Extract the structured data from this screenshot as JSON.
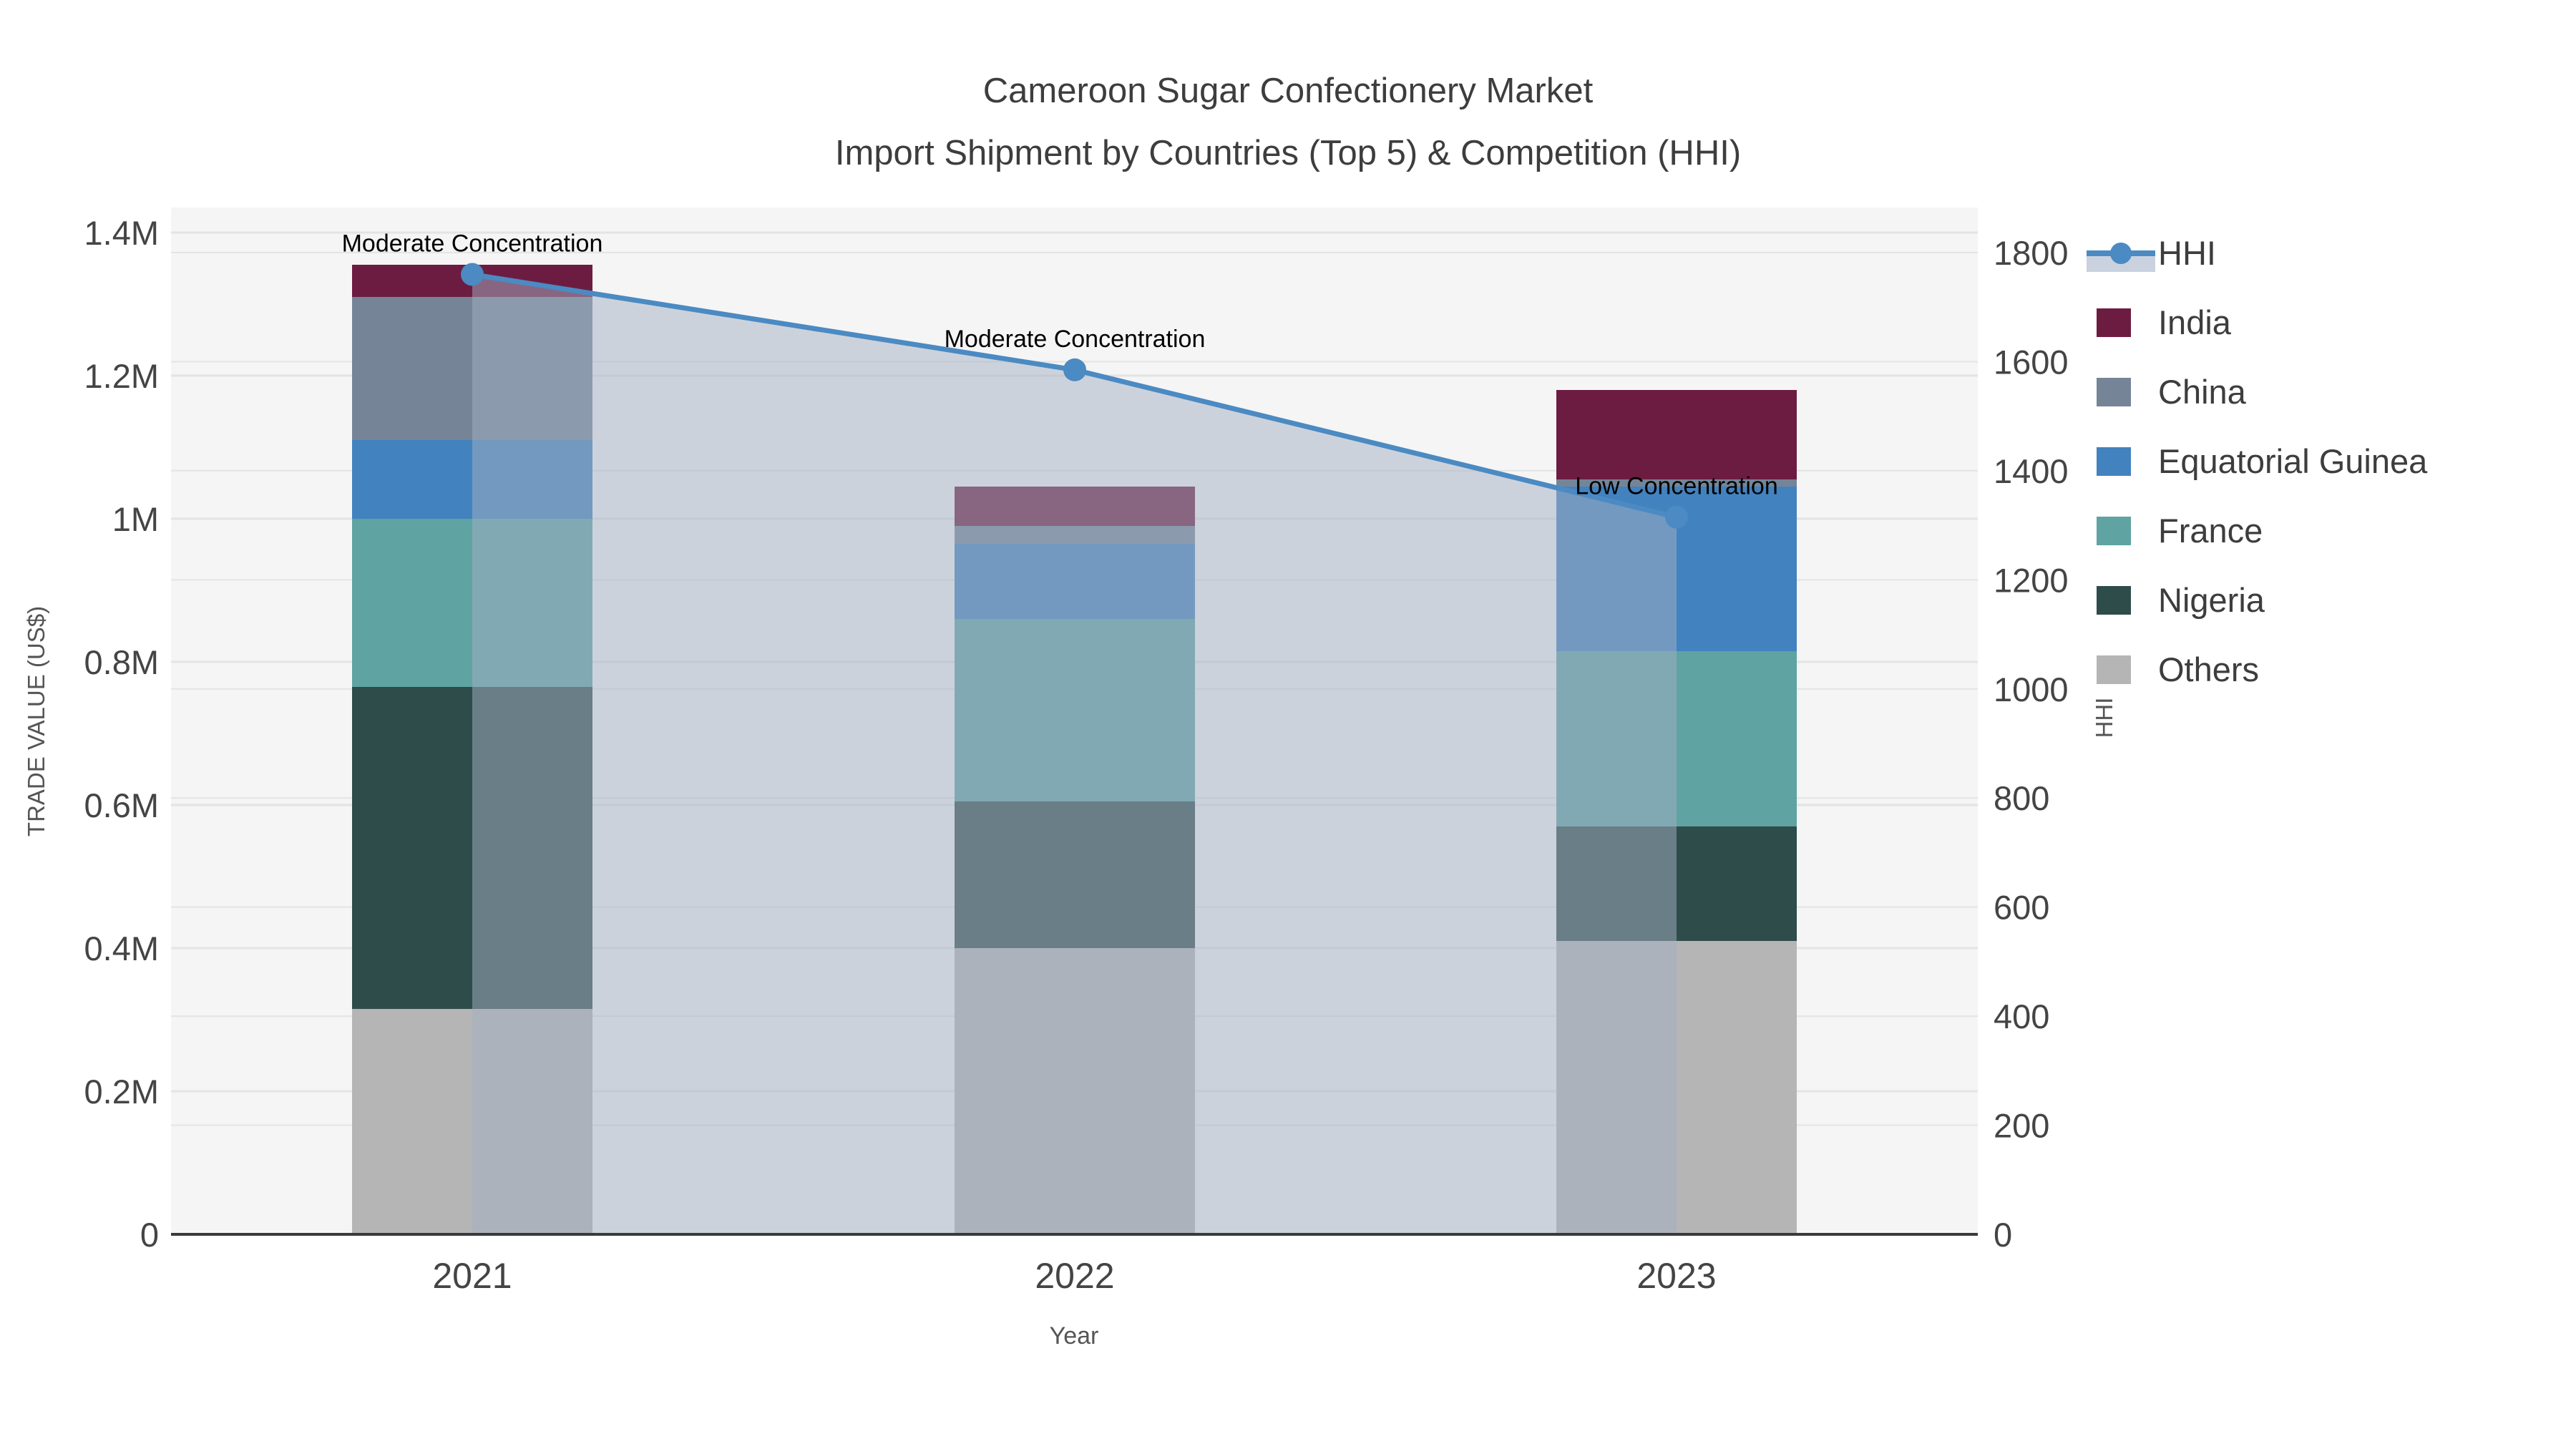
{
  "title": {
    "line1": "Cameroon Sugar Confectionery Market",
    "line2": "Import Shipment by Countries (Top 5) & Competition (HHI)"
  },
  "axes": {
    "x": {
      "label": "Year",
      "categories": [
        "2021",
        "2022",
        "2023"
      ]
    },
    "y_left": {
      "label": "TRADE VALUE (US$)",
      "ticks": [
        "0",
        "0.2M",
        "0.4M",
        "0.6M",
        "0.8M",
        "1M",
        "1.2M",
        "1.4M"
      ],
      "tick_values": [
        0,
        200000,
        400000,
        600000,
        800000,
        1000000,
        1200000,
        1400000
      ],
      "max": 1400000
    },
    "y_right": {
      "label": "HHI",
      "ticks": [
        "0",
        "200",
        "400",
        "600",
        "800",
        "1000",
        "1200",
        "1400",
        "1600",
        "1800"
      ],
      "tick_values": [
        0,
        200,
        400,
        600,
        800,
        1000,
        1200,
        1400,
        1600,
        1800
      ],
      "max": 1800
    }
  },
  "chart_data": {
    "type": "bar+line",
    "categories": [
      "2021",
      "2022",
      "2023"
    ],
    "stack_note": "stacked bars, bottom-to-top: Others, Nigeria, France, Equatorial Guinea, China, India; values in US$",
    "series": [
      {
        "name": "India",
        "type": "bar",
        "color": "#6d1c41",
        "values": [
          45000,
          55000,
          125000
        ]
      },
      {
        "name": "China",
        "type": "bar",
        "color": "#758597",
        "values": [
          200000,
          25000,
          10000
        ]
      },
      {
        "name": "Equatorial Guinea",
        "type": "bar",
        "color": "#4282bf",
        "values": [
          110000,
          105000,
          230000
        ]
      },
      {
        "name": "France",
        "type": "bar",
        "color": "#5fa3a2",
        "values": [
          235000,
          255000,
          245000
        ]
      },
      {
        "name": "Nigeria",
        "type": "bar",
        "color": "#2e4c4a",
        "values": [
          450000,
          205000,
          160000
        ]
      },
      {
        "name": "Others",
        "type": "bar",
        "color": "#b5b5b5",
        "values": [
          315000,
          400000,
          410000
        ]
      }
    ],
    "hhi": {
      "name": "HHI",
      "type": "line+area",
      "color": "#4b8ac2",
      "area_fill": "rgba(163,175,195,0.5)",
      "values": [
        1760,
        1585,
        1315
      ]
    },
    "annotations": [
      {
        "text": "Moderate Concentration",
        "category_index": 0
      },
      {
        "text": "Moderate Concentration",
        "category_index": 1
      },
      {
        "text": "Low Concentration",
        "category_index": 2
      }
    ],
    "totals": [
      1355000,
      1045000,
      1180000
    ],
    "ylim_left": [
      0,
      1400000
    ],
    "ylim_right": [
      0,
      1800
    ],
    "grid": true,
    "legend_position": "right"
  },
  "colors": {
    "plot_background": "#f5f5f5",
    "figure_background": "#ffffff",
    "gridline": "#e4e4e4",
    "axis_line": "#3a3a3a",
    "tick_text": "#444444",
    "title_text": "#3d3d3d",
    "axis_title_text": "#555555",
    "annotation_text": "#000000"
  }
}
